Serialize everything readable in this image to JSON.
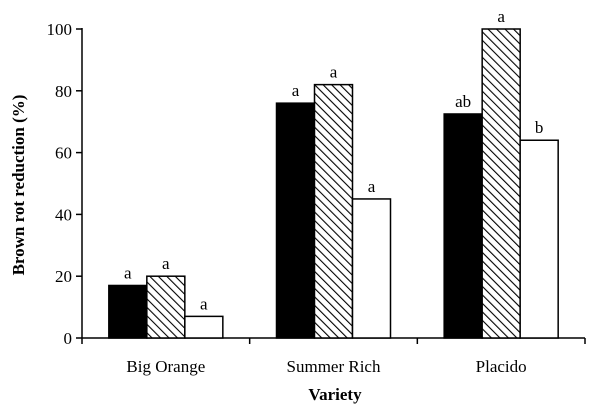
{
  "chart_data": {
    "type": "bar",
    "title": "",
    "xlabel": "Variety",
    "ylabel": "Brown rot reduction (%)",
    "ylim": [
      0,
      100
    ],
    "yticks": [
      0,
      20,
      40,
      60,
      80,
      100
    ],
    "grid": false,
    "legend": "none",
    "categories": [
      "Big Orange",
      "Summer Rich",
      "Placido"
    ],
    "series": [
      {
        "fill": "solid",
        "color": "#000000",
        "values": [
          17,
          76,
          72.5
        ],
        "labels": [
          "a",
          "a",
          "ab"
        ]
      },
      {
        "fill": "hatched",
        "color": "#000000",
        "values": [
          20,
          82,
          100
        ],
        "labels": [
          "a",
          "a",
          "a"
        ]
      },
      {
        "fill": "open",
        "color": "#ffffff",
        "values": [
          7,
          45,
          64
        ],
        "labels": [
          "a",
          "a",
          "b"
        ]
      }
    ]
  }
}
